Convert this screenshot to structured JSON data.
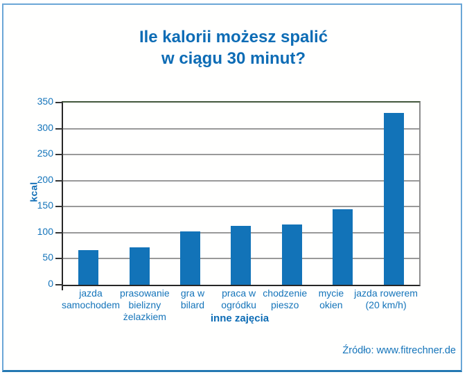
{
  "title": {
    "line1": "Ile kalorii możesz spalić",
    "line2": "w ciągu 30 minut?"
  },
  "source": "Źródło: www.fitrechner.de",
  "chart_data": {
    "type": "bar",
    "title": "Ile kalorii możesz spalić w ciągu 30 minut?",
    "categories": [
      [
        "jazda",
        "samochodem"
      ],
      [
        "prasowanie",
        "bielizny",
        "żelazkiem"
      ],
      [
        "gra w",
        "bilard"
      ],
      [
        "praca w",
        "ogródku"
      ],
      [
        "chodzenie",
        "pieszo"
      ],
      [
        "mycie",
        "okien"
      ],
      [
        "jazda rowerem",
        "(20 km/h)"
      ]
    ],
    "values": [
      66,
      72,
      103,
      113,
      116,
      145,
      330
    ],
    "xlabel": "inne zajęcia",
    "ylabel": "kcal",
    "ylim": [
      0,
      350
    ],
    "ytick_step": 50,
    "grid": true,
    "legend": false
  },
  "colors": {
    "title_blue": "#0d6cb5",
    "label_blue": "#1474ba",
    "bar_blue": "#1273b8",
    "gridline_gray": "#999999",
    "axis_dark": "#262626",
    "frame_border_blue": "#6aa6d6",
    "frame_bottom_blue": "#2478b2"
  }
}
